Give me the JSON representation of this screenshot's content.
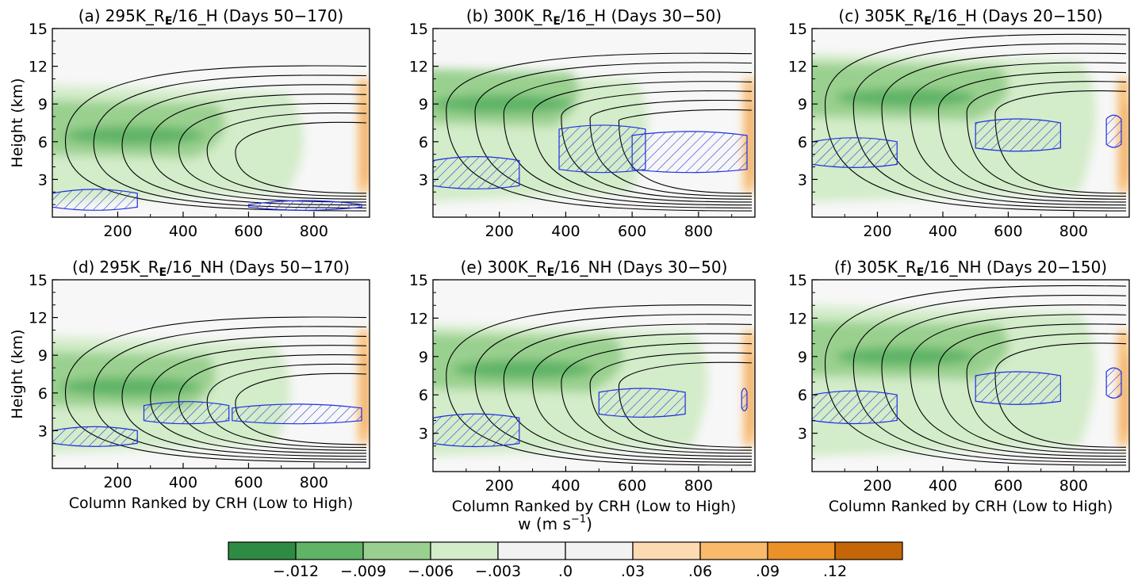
{
  "chart_data": [
    {
      "type": "heatmap",
      "panel_label": "(a)",
      "experiment": "295K_R",
      "subscript": "E",
      "title_rest": "/16_H (Days 50−170)",
      "ylabel": "Height (km)",
      "xlabel": "",
      "x_ticks": [
        "200",
        "400",
        "600",
        "800"
      ],
      "y_ticks": [
        "3",
        "6",
        "9",
        "12",
        "15"
      ],
      "xlim": [
        0,
        970
      ],
      "ylim": [
        0,
        15
      ],
      "green_core_y": 6.5,
      "green_top": 10.5,
      "green_extent": 720,
      "contour_levels": 7,
      "hatch": [
        [
          0,
          0.8,
          1.9
        ],
        [
          600,
          0.8,
          1.0
        ]
      ]
    },
    {
      "type": "heatmap",
      "panel_label": "(b)",
      "experiment": "300K_R",
      "subscript": "E",
      "title_rest": "/16_H (Days 30−50)",
      "ylabel": "",
      "xlabel": "",
      "x_ticks": [
        "200",
        "400",
        "600",
        "800"
      ],
      "y_ticks": [
        "3",
        "6",
        "9",
        "12",
        "15"
      ],
      "xlim": [
        0,
        970
      ],
      "ylim": [
        0,
        15
      ],
      "green_core_y": 9.0,
      "green_top": 11.5,
      "green_extent": 600,
      "contour_levels": 7,
      "hatch": [
        [
          0,
          2.5,
          4.5
        ],
        [
          380,
          3.8,
          7.0
        ],
        [
          600,
          3.8,
          6.5
        ]
      ]
    },
    {
      "type": "heatmap",
      "panel_label": "(c)",
      "experiment": "305K_R",
      "subscript": "E",
      "title_rest": "/16_H (Days 20−150)",
      "ylabel": "",
      "xlabel": "",
      "x_ticks": [
        "200",
        "400",
        "600",
        "800"
      ],
      "y_ticks": [
        "3",
        "6",
        "9",
        "12",
        "15"
      ],
      "xlim": [
        0,
        970
      ],
      "ylim": [
        0,
        15
      ],
      "green_core_y": 9.5,
      "green_top": 13.0,
      "green_extent": 820,
      "contour_levels": 7,
      "hatch": [
        [
          0,
          4.2,
          6.0
        ],
        [
          500,
          5.5,
          7.5
        ],
        [
          900,
          5.8,
          7.8
        ]
      ]
    },
    {
      "type": "heatmap",
      "panel_label": "(d)",
      "experiment": "295K_R",
      "subscript": "E",
      "title_rest": "/16_NH (Days 50−170)",
      "ylabel": "Height (km)",
      "xlabel": "Column Ranked by CRH (Low to High)",
      "x_ticks": [
        "200",
        "400",
        "600",
        "800"
      ],
      "y_ticks": [
        "3",
        "6",
        "9",
        "12",
        "15"
      ],
      "xlim": [
        0,
        970
      ],
      "ylim": [
        0,
        15
      ],
      "green_core_y": 6.5,
      "green_top": 10.5,
      "green_extent": 680,
      "contour_levels": 7,
      "hatch": [
        [
          0,
          2.0,
          3.0
        ],
        [
          280,
          3.8,
          5.0
        ],
        [
          550,
          3.8,
          4.8
        ]
      ]
    },
    {
      "type": "heatmap",
      "panel_label": "(e)",
      "experiment": "300K_R",
      "subscript": "E",
      "title_rest": "/16_NH (Days 30−50)",
      "ylabel": "",
      "xlabel": "Column Ranked by CRH (Low to High)",
      "x_ticks": [
        "200",
        "400",
        "600",
        "800"
      ],
      "y_ticks": [
        "3",
        "6",
        "9",
        "12",
        "15"
      ],
      "xlim": [
        0,
        970
      ],
      "ylim": [
        0,
        15
      ],
      "green_core_y": 8.0,
      "green_top": 11.5,
      "green_extent": 780,
      "contour_levels": 7,
      "hatch": [
        [
          0,
          2.2,
          4.2
        ],
        [
          500,
          4.5,
          6.2
        ],
        [
          930,
          5.0,
          6.2
        ]
      ]
    },
    {
      "type": "heatmap",
      "panel_label": "(f)",
      "experiment": "305K_R",
      "subscript": "E",
      "title_rest": "/16_NH (Days 20−150)",
      "ylabel": "",
      "xlabel": "Column Ranked by CRH (Low to High)",
      "x_ticks": [
        "200",
        "400",
        "600",
        "800"
      ],
      "y_ticks": [
        "3",
        "6",
        "9",
        "12",
        "15"
      ],
      "xlim": [
        0,
        970
      ],
      "ylim": [
        0,
        15
      ],
      "green_core_y": 9.0,
      "green_top": 13.0,
      "green_extent": 820,
      "contour_levels": 7,
      "hatch": [
        [
          0,
          4.0,
          6.0
        ],
        [
          500,
          5.5,
          7.5
        ],
        [
          900,
          6.0,
          7.8
        ]
      ]
    }
  ],
  "colorbar": {
    "title": "w (m s",
    "title_exp": "−1",
    "title_close": ")",
    "colors": [
      "#2e8b43",
      "#5fb466",
      "#9ad08f",
      "#d3ecc9",
      "#f2f2f2",
      "#f2f2f2",
      "#fddbb2",
      "#f9ba6c",
      "#ea9128",
      "#c46508"
    ],
    "labels": [
      "−.012",
      "−.009",
      "−.006",
      "−.003",
      ".0",
      ".03",
      ".06",
      ".09",
      ".12"
    ]
  },
  "colors": {
    "contour": "#000000",
    "hatch": "#1f2fe0",
    "background": "#f7f7f7"
  }
}
